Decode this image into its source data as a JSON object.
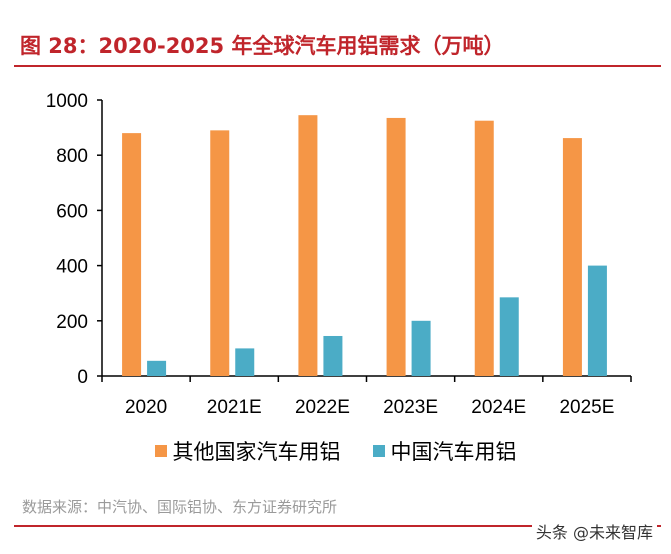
{
  "title": "图 28：2020-2025 年全球汽车用铝需求（万吨）",
  "source": "数据来源：中汽协、国际铝协、东方证券研究所",
  "watermark": "头条 @未来智库",
  "chart_data": {
    "type": "bar",
    "categories": [
      "2020",
      "2021E",
      "2022E",
      "2023E",
      "2024E",
      "2025E"
    ],
    "series": [
      {
        "name": "其他国家汽车用铝",
        "color": "#f59646",
        "values": [
          880,
          890,
          945,
          935,
          925,
          862
        ]
      },
      {
        "name": "中国汽车用铝",
        "color": "#4bacc6",
        "values": [
          55,
          100,
          145,
          200,
          285,
          400
        ]
      }
    ],
    "yticks": [
      "0",
      "200",
      "400",
      "600",
      "800",
      "1000"
    ],
    "ylim": [
      0,
      1000
    ],
    "grid": false,
    "legend": "bottom"
  }
}
